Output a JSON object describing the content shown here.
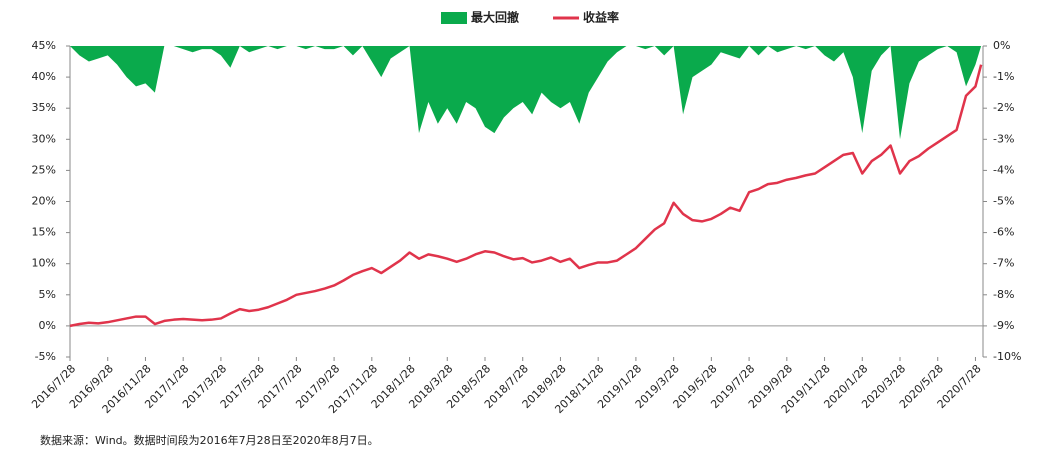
{
  "chart_data": {
    "type": "combo",
    "legend": "top",
    "x": [
      0,
      0.5,
      1,
      1.5,
      2,
      2.5,
      3,
      3.5,
      4,
      4.5,
      5,
      5.5,
      6,
      6.5,
      7,
      7.5,
      8,
      8.5,
      9,
      9.5,
      10,
      10.5,
      11,
      11.5,
      12,
      12.5,
      13,
      13.5,
      14,
      14.5,
      15,
      15.5,
      16,
      16.5,
      17,
      17.5,
      18,
      18.5,
      19,
      19.5,
      20,
      20.5,
      21,
      21.5,
      22,
      22.5,
      23,
      23.5,
      24,
      24.5,
      25,
      25.5,
      26,
      26.5,
      27,
      27.5,
      28,
      28.5,
      29,
      29.5,
      30,
      30.5,
      31,
      31.5,
      32,
      32.5,
      33,
      33.5,
      34,
      34.5,
      35,
      35.5,
      36,
      36.5,
      37,
      37.5,
      38,
      38.5,
      39,
      39.5,
      40,
      40.5,
      41,
      41.5,
      42,
      42.5,
      43,
      43.5,
      44,
      44.5,
      45,
      45.5,
      46,
      46.5,
      47,
      47.5,
      48,
      48.3
    ],
    "xlim": [
      0,
      48.4
    ],
    "xticks": [
      {
        "value": 0,
        "label": "2016/7/28"
      },
      {
        "value": 2,
        "label": "2016/9/28"
      },
      {
        "value": 4,
        "label": "2016/11/28"
      },
      {
        "value": 6,
        "label": "2017/1/28"
      },
      {
        "value": 8,
        "label": "2017/3/28"
      },
      {
        "value": 10,
        "label": "2017/5/28"
      },
      {
        "value": 12,
        "label": "2017/7/28"
      },
      {
        "value": 14,
        "label": "2017/9/28"
      },
      {
        "value": 16,
        "label": "2017/11/28"
      },
      {
        "value": 18,
        "label": "2018/1/28"
      },
      {
        "value": 20,
        "label": "2018/3/28"
      },
      {
        "value": 22,
        "label": "2018/5/28"
      },
      {
        "value": 24,
        "label": "2018/7/28"
      },
      {
        "value": 26,
        "label": "2018/9/28"
      },
      {
        "value": 28,
        "label": "2018/11/28"
      },
      {
        "value": 30,
        "label": "2019/1/28"
      },
      {
        "value": 32,
        "label": "2019/3/28"
      },
      {
        "value": 34,
        "label": "2019/5/28"
      },
      {
        "value": 36,
        "label": "2019/7/28"
      },
      {
        "value": 38,
        "label": "2019/9/28"
      },
      {
        "value": 40,
        "label": "2019/11/28"
      },
      {
        "value": 42,
        "label": "2020/1/28"
      },
      {
        "value": 44,
        "label": "2020/3/28"
      },
      {
        "value": 46,
        "label": "2020/5/28"
      },
      {
        "value": 48,
        "label": "2020/7/28"
      }
    ],
    "ylim": [
      -5,
      45
    ],
    "yticks": [
      {
        "value": -5,
        "label": "-5%"
      },
      {
        "value": 0,
        "label": "0%"
      },
      {
        "value": 5,
        "label": "5%"
      },
      {
        "value": 10,
        "label": "10%"
      },
      {
        "value": 15,
        "label": "15%"
      },
      {
        "value": 20,
        "label": "20%"
      },
      {
        "value": 25,
        "label": "25%"
      },
      {
        "value": 30,
        "label": "30%"
      },
      {
        "value": 35,
        "label": "35%"
      },
      {
        "value": 40,
        "label": "40%"
      },
      {
        "value": 45,
        "label": "45%"
      }
    ],
    "y2lim": [
      -10,
      0
    ],
    "y2ticks": [
      {
        "value": 0,
        "label": "0%"
      },
      {
        "value": -1,
        "label": "-1%"
      },
      {
        "value": -2,
        "label": "-2%"
      },
      {
        "value": -3,
        "label": "-3%"
      },
      {
        "value": -4,
        "label": "-4%"
      },
      {
        "value": -5,
        "label": "-5%"
      },
      {
        "value": -6,
        "label": "-6%"
      },
      {
        "value": -7,
        "label": "-7%"
      },
      {
        "value": -8,
        "label": "-8%"
      },
      {
        "value": -9,
        "label": "-9%"
      },
      {
        "value": -10,
        "label": "-10%"
      }
    ],
    "series": [
      {
        "name": "最大回撤",
        "type": "area",
        "axis": "y2",
        "color": "#0aaa4c",
        "values": [
          0,
          -0.3,
          -0.5,
          -0.4,
          -0.3,
          -0.6,
          -1.0,
          -1.3,
          -1.2,
          -1.5,
          0,
          0,
          -0.1,
          -0.2,
          -0.1,
          -0.1,
          -0.3,
          -0.7,
          0,
          -0.2,
          -0.1,
          0,
          -0.1,
          0,
          0,
          -0.1,
          0,
          -0.1,
          -0.1,
          0,
          -0.3,
          0,
          -0.5,
          -1.0,
          -0.4,
          -0.2,
          0,
          -2.8,
          -1.8,
          -2.5,
          -2.0,
          -2.5,
          -1.8,
          -2.0,
          -2.6,
          -2.8,
          -2.3,
          -2.0,
          -1.8,
          -2.2,
          -1.5,
          -1.8,
          -2.0,
          -1.8,
          -2.5,
          -1.5,
          -1.0,
          -0.5,
          -0.2,
          0,
          0,
          -0.1,
          0,
          -0.3,
          0,
          -2.2,
          -1.0,
          -0.8,
          -0.6,
          -0.2,
          -0.3,
          -0.4,
          0,
          -0.3,
          0,
          -0.2,
          -0.1,
          0,
          -0.1,
          0,
          -0.3,
          -0.5,
          -0.2,
          -1.0,
          -2.8,
          -0.8,
          -0.3,
          0,
          -3.0,
          -1.2,
          -0.5,
          -0.3,
          -0.1,
          0,
          -0.2,
          -1.3,
          -0.6,
          0
        ]
      },
      {
        "name": "收益率",
        "type": "line",
        "axis": "y",
        "color": "#e0344b",
        "values": [
          0,
          0.3,
          0.5,
          0.4,
          0.6,
          0.9,
          1.2,
          1.5,
          1.5,
          0.3,
          0.8,
          1.0,
          1.1,
          1.0,
          0.9,
          1.0,
          1.2,
          2.0,
          2.7,
          2.4,
          2.6,
          3.0,
          3.6,
          4.2,
          5.0,
          5.3,
          5.6,
          6.0,
          6.5,
          7.3,
          8.2,
          8.8,
          9.3,
          8.5,
          9.5,
          10.5,
          11.8,
          10.8,
          11.5,
          11.2,
          10.8,
          10.3,
          10.8,
          11.5,
          12.0,
          11.8,
          11.2,
          10.7,
          10.9,
          10.2,
          10.5,
          11.0,
          10.3,
          10.8,
          9.3,
          9.8,
          10.2,
          10.2,
          10.5,
          11.5,
          12.5,
          14.0,
          15.5,
          16.5,
          19.8,
          18.0,
          17.0,
          16.8,
          17.2,
          18.0,
          19.0,
          18.5,
          21.5,
          22.0,
          22.8,
          23.0,
          23.5,
          23.8,
          24.2,
          24.5,
          25.5,
          26.5,
          27.5,
          27.8,
          24.5,
          26.5,
          27.5,
          29.0,
          24.5,
          26.5,
          27.3,
          28.5,
          29.5,
          30.5,
          31.5,
          37.0,
          38.5,
          42.0
        ]
      }
    ],
    "note": "数据来源：Wind。数据时间段为2016年7月28日至2020年8月7日。"
  }
}
